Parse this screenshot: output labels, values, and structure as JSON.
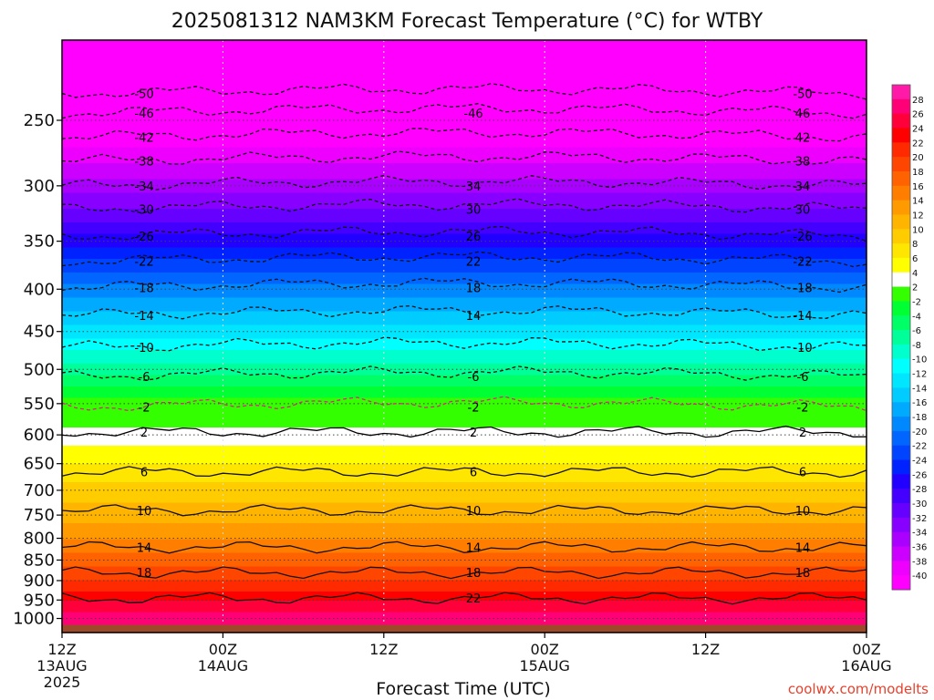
{
  "chart_data": {
    "type": "heatmap",
    "title": "2025081312 NAM3KM Forecast Temperature (°C) for WTBY",
    "xlabel": "Forecast Time (UTC)",
    "ylabel": "",
    "credit": "coolwx.com/modelts",
    "y_ticks": [
      250,
      300,
      350,
      400,
      450,
      500,
      550,
      600,
      650,
      700,
      750,
      800,
      850,
      900,
      950,
      1000
    ],
    "y_scale": "log-pressure",
    "y_range_hpa": [
      1040,
      200
    ],
    "x_range": [
      "2025-08-13T12:00Z",
      "2025-08-16T00:00Z"
    ],
    "x_ticks": [
      {
        "line1": "12Z",
        "line2": "13AUG",
        "line3": "2025"
      },
      {
        "line1": "00Z",
        "line2": "14AUG",
        "line3": ""
      },
      {
        "line1": "12Z",
        "line2": "",
        "line3": ""
      },
      {
        "line1": "00Z",
        "line2": "15AUG",
        "line3": ""
      },
      {
        "line1": "12Z",
        "line2": "",
        "line3": ""
      },
      {
        "line1": "00Z",
        "line2": "16AUG",
        "line3": ""
      }
    ],
    "colorbar_labels": [
      28,
      26,
      24,
      22,
      20,
      18,
      16,
      14,
      12,
      10,
      8,
      6,
      4,
      2,
      -2,
      -4,
      -6,
      -8,
      -10,
      -12,
      -14,
      -16,
      -18,
      -20,
      -22,
      -24,
      -26,
      -28,
      -30,
      -32,
      -34,
      -36,
      -38,
      -40
    ],
    "colorbar_colors": [
      "#ff1aa8",
      "#ff0077",
      "#ff003a",
      "#ff0000",
      "#ff2a00",
      "#ff4600",
      "#ff6200",
      "#ff7e00",
      "#ff9a00",
      "#ffb400",
      "#ffcc00",
      "#ffe600",
      "#ffff00",
      "#ffffff",
      "#33ff00",
      "#00ff33",
      "#00ff66",
      "#00ff99",
      "#00ffcc",
      "#00ffff",
      "#00e6ff",
      "#00ccff",
      "#00aaff",
      "#0088ff",
      "#0066ff",
      "#0044ff",
      "#0022ff",
      "#2200ff",
      "#4400ff",
      "#6600ff",
      "#8800ff",
      "#aa00ff",
      "#cc00ff",
      "#ee00ff",
      "#ff00ff"
    ],
    "temperature_profile": [
      {
        "p": 200,
        "t": -54
      },
      {
        "p": 225,
        "t": -48
      },
      {
        "p": 250,
        "t": -43
      },
      {
        "p": 275,
        "t": -39
      },
      {
        "p": 300,
        "t": -35
      },
      {
        "p": 325,
        "t": -31
      },
      {
        "p": 350,
        "t": -27
      },
      {
        "p": 375,
        "t": -23
      },
      {
        "p": 400,
        "t": -19
      },
      {
        "p": 450,
        "t": -13
      },
      {
        "p": 500,
        "t": -7
      },
      {
        "p": 550,
        "t": -1
      },
      {
        "p": 600,
        "t": 3
      },
      {
        "p": 650,
        "t": 6
      },
      {
        "p": 700,
        "t": 9
      },
      {
        "p": 750,
        "t": 11
      },
      {
        "p": 800,
        "t": 14
      },
      {
        "p": 850,
        "t": 17
      },
      {
        "p": 900,
        "t": 20
      },
      {
        "p": 950,
        "t": 24
      },
      {
        "p": 1000,
        "t": 27
      }
    ],
    "contours": [
      {
        "value": -50,
        "p": 232,
        "labels": [
          "-50",
          "-50"
        ]
      },
      {
        "value": -46,
        "p": 245,
        "labels": [
          "-46",
          "-46",
          "46"
        ]
      },
      {
        "value": -42,
        "p": 262,
        "labels": [
          "-42",
          "42"
        ]
      },
      {
        "value": -38,
        "p": 280,
        "labels": [
          "-38",
          "38"
        ]
      },
      {
        "value": -34,
        "p": 300,
        "labels": [
          "-34",
          "34",
          "34"
        ]
      },
      {
        "value": -30,
        "p": 320,
        "labels": [
          "-30",
          "30",
          "30"
        ]
      },
      {
        "value": -26,
        "p": 345,
        "labels": [
          "-26",
          "26",
          "-26"
        ]
      },
      {
        "value": -22,
        "p": 370,
        "labels": [
          "-22",
          "22",
          "-22"
        ]
      },
      {
        "value": -18,
        "p": 398,
        "labels": [
          "-18",
          "18",
          "-18"
        ]
      },
      {
        "value": -14,
        "p": 430,
        "labels": [
          "-14",
          "14",
          "-14"
        ]
      },
      {
        "value": -10,
        "p": 470,
        "labels": [
          "-10",
          "-10"
        ]
      },
      {
        "value": -6,
        "p": 510,
        "labels": [
          "-6",
          "-6",
          "-6"
        ]
      },
      {
        "value": -2,
        "p": 555,
        "labels": [
          "-2",
          "-2",
          "-2"
        ]
      },
      {
        "value": 2,
        "p": 595,
        "labels": [
          "2",
          "2",
          "2"
        ]
      },
      {
        "value": 6,
        "p": 665,
        "labels": [
          "6",
          "6",
          "6"
        ]
      },
      {
        "value": 10,
        "p": 740,
        "labels": [
          "10",
          "10",
          "10"
        ]
      },
      {
        "value": 14,
        "p": 820,
        "labels": [
          "14",
          "14",
          "14"
        ]
      },
      {
        "value": 18,
        "p": 880,
        "labels": [
          "18",
          "18",
          "18"
        ]
      },
      {
        "value": 22,
        "p": 945,
        "labels": [
          "22"
        ]
      }
    ],
    "grid": true,
    "legend": "right colorbar"
  }
}
